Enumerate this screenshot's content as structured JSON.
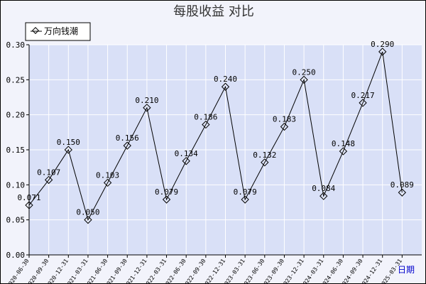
{
  "chart_data": {
    "type": "line",
    "title": "每股收益  对比",
    "xlabel": "日期",
    "ylabel": "",
    "ylim": [
      0,
      0.3
    ],
    "yticks": [
      "0.00",
      "0.05",
      "0.10",
      "0.15",
      "0.20",
      "0.25",
      "0.30"
    ],
    "ytick_values": [
      0,
      0.05,
      0.1,
      0.15,
      0.2,
      0.25,
      0.3
    ],
    "grid": true,
    "legend_position": "top-left",
    "colors": {
      "plot_bg": "#d9e0f7",
      "grid": "#ffffff",
      "line": "#000000",
      "xaxis_label": "#0000cc"
    },
    "categories": [
      "2020-06-30",
      "2020-09-30",
      "2020-12-31",
      "2021-03-31",
      "2021-06-30",
      "2021-09-30",
      "2021-12-31",
      "2022-03-31",
      "2022-06-30",
      "2022-09-30",
      "2022-12-31",
      "2023-03-31",
      "2023-06-30",
      "2023-09-30",
      "2023-12-31",
      "2024-03-31",
      "2024-06-30",
      "2024-09-30",
      "2024-12-31",
      "2025-03-31"
    ],
    "series": [
      {
        "name": "万向钱潮",
        "values": [
          0.071,
          0.107,
          0.15,
          0.05,
          0.103,
          0.156,
          0.21,
          0.079,
          0.134,
          0.186,
          0.24,
          0.079,
          0.132,
          0.183,
          0.25,
          0.084,
          0.148,
          0.217,
          0.29,
          0.089
        ],
        "labels": [
          "0.071",
          "0.107",
          "0.150",
          "0.050",
          "0.103",
          "0.156",
          "0.210",
          "0.079",
          "0.134",
          "0.186",
          "0.240",
          "0.079",
          "0.132",
          "0.183",
          "0.250",
          "0.084",
          "0.148",
          "0.217",
          "0.290",
          "0.089"
        ]
      }
    ]
  }
}
